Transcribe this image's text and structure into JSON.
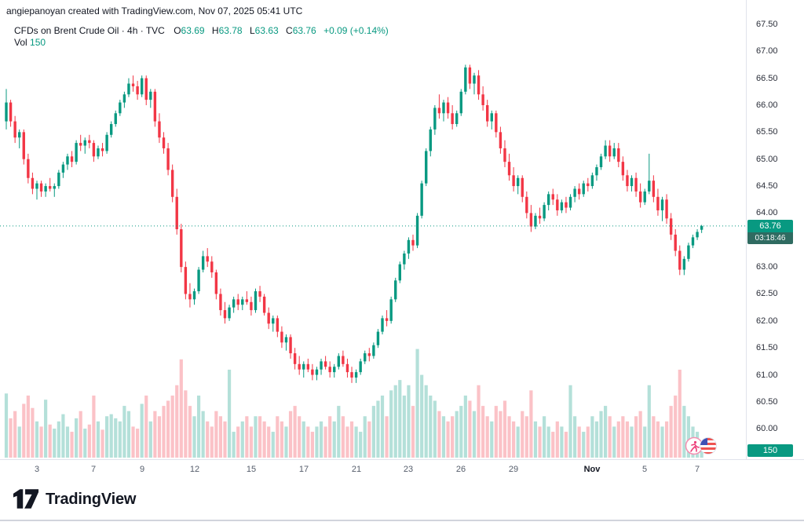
{
  "header": {
    "attribution": "angiepanoyan created with TradingView.com, Nov 07, 2025 05:41 UTC"
  },
  "legend": {
    "symbol_title": "CFDs on Brent Crude Oil · 4h · TVC",
    "o_label": "O",
    "o_value": "63.69",
    "h_label": "H",
    "h_value": "63.78",
    "l_label": "L",
    "l_value": "63.63",
    "c_label": "C",
    "c_value": "63.76",
    "change": "+0.09 (+0.14%)",
    "vol_label": "Vol",
    "vol_value": "150"
  },
  "price_scale": {
    "last_price_badge": "63.76",
    "countdown": "03:18:46",
    "volume_badge": "150"
  },
  "footer": {
    "brand": "TradingView"
  },
  "colors": {
    "up": "#089981",
    "down": "#f23645",
    "text_dark": "#131722",
    "axis_line": "#e0e3eb",
    "countdown_bg": "#2f6b61"
  },
  "chart_data": {
    "type": "candlestick",
    "title": "CFDs on Brent Crude Oil, 4h, TVC",
    "symbol": "Brent Crude Oil CFD",
    "interval": "4h",
    "last": {
      "open": 63.69,
      "high": 63.78,
      "low": 63.63,
      "close": 63.76,
      "change": 0.09,
      "change_pct": 0.14,
      "volume": 150
    },
    "ylim": [
      59.8,
      67.95
    ],
    "y_ticks": [
      "67.50",
      "67.00",
      "66.50",
      "66.00",
      "65.50",
      "65.00",
      "64.50",
      "64.00",
      "63.50",
      "63.00",
      "62.50",
      "62.00",
      "61.50",
      "61.00",
      "60.50",
      "60.00"
    ],
    "x_ticks": [
      {
        "label": "3",
        "i": 7
      },
      {
        "label": "7",
        "i": 20
      },
      {
        "label": "9",
        "i": 31
      },
      {
        "label": "12",
        "i": 43
      },
      {
        "label": "15",
        "i": 56
      },
      {
        "label": "17",
        "i": 68
      },
      {
        "label": "21",
        "i": 80
      },
      {
        "label": "23",
        "i": 92
      },
      {
        "label": "26",
        "i": 104
      },
      {
        "label": "29",
        "i": 116
      },
      {
        "label": "Nov",
        "i": 134,
        "month": true
      },
      {
        "label": "5",
        "i": 146
      },
      {
        "label": "7",
        "i": 158
      }
    ],
    "volume_scale_max": 1100,
    "candles_format": [
      "open",
      "high",
      "low",
      "close",
      "volume"
    ],
    "candles": [
      [
        65.7,
        66.3,
        65.55,
        66.05,
        620
      ],
      [
        66.05,
        66.1,
        65.6,
        65.7,
        380
      ],
      [
        65.7,
        65.8,
        65.3,
        65.4,
        450
      ],
      [
        65.4,
        65.55,
        65.2,
        65.5,
        300
      ],
      [
        65.5,
        65.55,
        64.9,
        65.0,
        520
      ],
      [
        65.0,
        65.1,
        64.55,
        64.65,
        600
      ],
      [
        64.65,
        64.75,
        64.35,
        64.45,
        480
      ],
      [
        64.45,
        64.6,
        64.25,
        64.55,
        350
      ],
      [
        64.55,
        64.6,
        64.3,
        64.4,
        300
      ],
      [
        64.4,
        64.55,
        64.3,
        64.5,
        560
      ],
      [
        64.5,
        64.65,
        64.4,
        64.45,
        320
      ],
      [
        64.45,
        64.55,
        64.3,
        64.5,
        280
      ],
      [
        64.5,
        64.8,
        64.45,
        64.75,
        350
      ],
      [
        64.75,
        64.95,
        64.65,
        64.9,
        420
      ],
      [
        64.9,
        65.1,
        64.8,
        65.05,
        300
      ],
      [
        65.05,
        65.15,
        64.85,
        64.95,
        250
      ],
      [
        64.95,
        65.35,
        64.9,
        65.3,
        380
      ],
      [
        65.3,
        65.45,
        65.15,
        65.25,
        450
      ],
      [
        65.25,
        65.4,
        65.1,
        65.35,
        280
      ],
      [
        65.35,
        65.45,
        65.2,
        65.3,
        320
      ],
      [
        65.3,
        65.35,
        64.95,
        65.05,
        600
      ],
      [
        65.05,
        65.25,
        65.0,
        65.2,
        350
      ],
      [
        65.2,
        65.3,
        65.05,
        65.15,
        270
      ],
      [
        65.15,
        65.5,
        65.1,
        65.45,
        400
      ],
      [
        65.45,
        65.7,
        65.4,
        65.65,
        420
      ],
      [
        65.65,
        65.9,
        65.6,
        65.85,
        380
      ],
      [
        65.85,
        66.1,
        65.8,
        66.05,
        350
      ],
      [
        66.05,
        66.25,
        65.95,
        66.2,
        500
      ],
      [
        66.2,
        66.5,
        66.15,
        66.4,
        450
      ],
      [
        66.4,
        66.55,
        66.25,
        66.35,
        300
      ],
      [
        66.35,
        66.45,
        66.1,
        66.2,
        280
      ],
      [
        66.2,
        66.55,
        66.15,
        66.5,
        520
      ],
      [
        66.5,
        66.55,
        66.0,
        66.1,
        600
      ],
      [
        66.1,
        66.3,
        65.95,
        66.25,
        350
      ],
      [
        66.25,
        66.3,
        65.6,
        65.7,
        450
      ],
      [
        65.7,
        65.85,
        65.3,
        65.4,
        400
      ],
      [
        65.4,
        65.5,
        65.1,
        65.2,
        500
      ],
      [
        65.2,
        65.3,
        64.7,
        64.8,
        550
      ],
      [
        64.8,
        64.9,
        64.2,
        64.3,
        600
      ],
      [
        64.3,
        64.45,
        63.6,
        63.7,
        700
      ],
      [
        63.7,
        63.8,
        62.9,
        63.0,
        950
      ],
      [
        63.0,
        63.1,
        62.4,
        62.5,
        650
      ],
      [
        62.5,
        62.7,
        62.25,
        62.4,
        500
      ],
      [
        62.4,
        62.6,
        62.3,
        62.55,
        400
      ],
      [
        62.55,
        63.0,
        62.5,
        62.95,
        600
      ],
      [
        62.95,
        63.3,
        62.9,
        63.2,
        450
      ],
      [
        63.2,
        63.35,
        63.0,
        63.1,
        350
      ],
      [
        63.1,
        63.2,
        62.8,
        62.9,
        300
      ],
      [
        62.9,
        62.95,
        62.4,
        62.5,
        450
      ],
      [
        62.5,
        62.6,
        62.1,
        62.2,
        400
      ],
      [
        62.2,
        62.35,
        61.95,
        62.05,
        350
      ],
      [
        62.05,
        62.3,
        62.0,
        62.25,
        850
      ],
      [
        62.25,
        62.45,
        62.15,
        62.4,
        250
      ],
      [
        62.4,
        62.5,
        62.2,
        62.3,
        300
      ],
      [
        62.3,
        62.45,
        62.2,
        62.4,
        350
      ],
      [
        62.4,
        62.55,
        62.3,
        62.35,
        400
      ],
      [
        62.35,
        62.45,
        62.1,
        62.2,
        300
      ],
      [
        62.2,
        62.6,
        62.15,
        62.55,
        400
      ],
      [
        62.55,
        62.65,
        62.35,
        62.45,
        400
      ],
      [
        62.45,
        62.5,
        62.1,
        62.15,
        350
      ],
      [
        62.15,
        62.25,
        61.85,
        61.95,
        300
      ],
      [
        61.95,
        62.1,
        61.8,
        62.05,
        250
      ],
      [
        62.05,
        62.1,
        61.7,
        61.8,
        400
      ],
      [
        61.8,
        61.9,
        61.5,
        61.6,
        350
      ],
      [
        61.6,
        61.75,
        61.45,
        61.7,
        300
      ],
      [
        61.7,
        61.75,
        61.3,
        61.4,
        450
      ],
      [
        61.4,
        61.5,
        61.1,
        61.2,
        500
      ],
      [
        61.2,
        61.35,
        61.0,
        61.1,
        400
      ],
      [
        61.1,
        61.25,
        60.95,
        61.2,
        350
      ],
      [
        61.2,
        61.3,
        61.05,
        61.1,
        300
      ],
      [
        61.1,
        61.2,
        60.9,
        61.0,
        250
      ],
      [
        61.0,
        61.15,
        60.9,
        61.1,
        300
      ],
      [
        61.1,
        61.3,
        61.0,
        61.25,
        350
      ],
      [
        61.25,
        61.35,
        61.1,
        61.15,
        300
      ],
      [
        61.15,
        61.25,
        60.95,
        61.05,
        400
      ],
      [
        61.05,
        61.2,
        60.95,
        61.15,
        350
      ],
      [
        61.15,
        61.4,
        61.1,
        61.35,
        500
      ],
      [
        61.35,
        61.45,
        61.15,
        61.2,
        400
      ],
      [
        61.2,
        61.3,
        60.95,
        61.05,
        300
      ],
      [
        61.05,
        61.15,
        60.85,
        60.95,
        350
      ],
      [
        60.95,
        61.1,
        60.85,
        61.05,
        300
      ],
      [
        61.05,
        61.3,
        61.0,
        61.25,
        250
      ],
      [
        61.25,
        61.45,
        61.2,
        61.4,
        400
      ],
      [
        61.4,
        61.5,
        61.25,
        61.35,
        350
      ],
      [
        61.35,
        61.6,
        61.3,
        61.55,
        500
      ],
      [
        61.55,
        61.85,
        61.5,
        61.8,
        550
      ],
      [
        61.8,
        62.1,
        61.75,
        62.05,
        600
      ],
      [
        62.05,
        62.2,
        61.9,
        62.0,
        400
      ],
      [
        62.0,
        62.45,
        61.95,
        62.4,
        650
      ],
      [
        62.4,
        62.8,
        62.35,
        62.75,
        700
      ],
      [
        62.75,
        63.1,
        62.7,
        63.05,
        750
      ],
      [
        63.05,
        63.3,
        62.95,
        63.25,
        600
      ],
      [
        63.25,
        63.55,
        63.15,
        63.5,
        700
      ],
      [
        63.5,
        63.6,
        63.3,
        63.4,
        500
      ],
      [
        63.4,
        64.0,
        63.35,
        63.95,
        1050
      ],
      [
        63.95,
        64.6,
        63.9,
        64.55,
        800
      ],
      [
        64.55,
        65.2,
        64.5,
        65.15,
        700
      ],
      [
        65.15,
        65.6,
        65.05,
        65.55,
        600
      ],
      [
        65.55,
        66.0,
        65.45,
        65.95,
        550
      ],
      [
        65.95,
        66.2,
        65.75,
        65.85,
        450
      ],
      [
        65.85,
        66.1,
        65.7,
        66.05,
        400
      ],
      [
        66.05,
        66.15,
        65.75,
        65.85,
        350
      ],
      [
        65.85,
        66.0,
        65.55,
        65.65,
        400
      ],
      [
        65.65,
        65.9,
        65.6,
        65.85,
        450
      ],
      [
        65.85,
        66.3,
        65.8,
        66.25,
        500
      ],
      [
        66.25,
        66.75,
        66.2,
        66.7,
        600
      ],
      [
        66.7,
        66.75,
        66.3,
        66.4,
        550
      ],
      [
        66.4,
        66.6,
        66.2,
        66.55,
        450
      ],
      [
        66.55,
        66.65,
        66.1,
        66.2,
        700
      ],
      [
        66.2,
        66.35,
        65.9,
        66.0,
        500
      ],
      [
        66.0,
        66.1,
        65.6,
        65.7,
        400
      ],
      [
        65.7,
        65.9,
        65.55,
        65.85,
        350
      ],
      [
        65.85,
        65.9,
        65.4,
        65.5,
        500
      ],
      [
        65.5,
        65.6,
        65.1,
        65.2,
        450
      ],
      [
        65.2,
        65.35,
        64.85,
        64.95,
        550
      ],
      [
        64.95,
        65.1,
        64.6,
        64.7,
        400
      ],
      [
        64.7,
        64.85,
        64.4,
        64.5,
        350
      ],
      [
        64.5,
        64.7,
        64.35,
        64.65,
        300
      ],
      [
        64.65,
        64.7,
        64.2,
        64.3,
        450
      ],
      [
        64.3,
        64.4,
        63.9,
        64.0,
        400
      ],
      [
        64.0,
        64.15,
        63.65,
        63.75,
        650
      ],
      [
        63.75,
        64.0,
        63.7,
        63.95,
        350
      ],
      [
        63.95,
        64.1,
        63.8,
        63.9,
        300
      ],
      [
        63.9,
        64.2,
        63.85,
        64.15,
        400
      ],
      [
        64.15,
        64.4,
        64.05,
        64.35,
        300
      ],
      [
        64.35,
        64.45,
        64.15,
        64.25,
        250
      ],
      [
        64.25,
        64.35,
        63.95,
        64.05,
        350
      ],
      [
        64.05,
        64.25,
        64.0,
        64.2,
        300
      ],
      [
        64.2,
        64.3,
        64.0,
        64.1,
        250
      ],
      [
        64.1,
        64.35,
        64.05,
        64.3,
        700
      ],
      [
        64.3,
        64.5,
        64.2,
        64.45,
        400
      ],
      [
        64.45,
        64.55,
        64.25,
        64.35,
        300
      ],
      [
        64.35,
        64.6,
        64.3,
        64.55,
        250
      ],
      [
        64.55,
        64.65,
        64.4,
        64.5,
        300
      ],
      [
        64.5,
        64.75,
        64.45,
        64.7,
        400
      ],
      [
        64.7,
        64.9,
        64.6,
        64.85,
        350
      ],
      [
        64.85,
        65.1,
        64.8,
        65.05,
        450
      ],
      [
        65.05,
        65.35,
        65.0,
        65.25,
        500
      ],
      [
        65.25,
        65.35,
        64.95,
        65.05,
        400
      ],
      [
        65.05,
        65.3,
        65.0,
        65.2,
        300
      ],
      [
        65.2,
        65.3,
        64.85,
        64.95,
        350
      ],
      [
        64.95,
        65.05,
        64.6,
        64.7,
        400
      ],
      [
        64.7,
        64.8,
        64.4,
        64.5,
        350
      ],
      [
        64.5,
        64.7,
        64.4,
        64.65,
        300
      ],
      [
        64.65,
        64.75,
        64.3,
        64.4,
        400
      ],
      [
        64.4,
        64.55,
        64.1,
        64.2,
        450
      ],
      [
        64.2,
        64.45,
        64.15,
        64.4,
        300
      ],
      [
        64.4,
        65.1,
        64.35,
        64.6,
        700
      ],
      [
        64.6,
        64.7,
        64.2,
        64.3,
        400
      ],
      [
        64.3,
        64.45,
        63.95,
        64.05,
        350
      ],
      [
        64.05,
        64.3,
        63.85,
        64.25,
        300
      ],
      [
        64.25,
        64.35,
        63.8,
        63.9,
        350
      ],
      [
        63.9,
        64.0,
        63.5,
        63.6,
        500
      ],
      [
        63.6,
        63.7,
        63.2,
        63.3,
        600
      ],
      [
        63.3,
        63.4,
        62.85,
        62.95,
        850
      ],
      [
        62.95,
        63.2,
        62.85,
        63.15,
        500
      ],
      [
        63.15,
        63.45,
        63.1,
        63.4,
        400
      ],
      [
        63.4,
        63.6,
        63.35,
        63.55,
        300
      ],
      [
        63.55,
        63.7,
        63.5,
        63.65,
        250
      ],
      [
        63.69,
        63.78,
        63.63,
        63.76,
        150
      ]
    ]
  }
}
